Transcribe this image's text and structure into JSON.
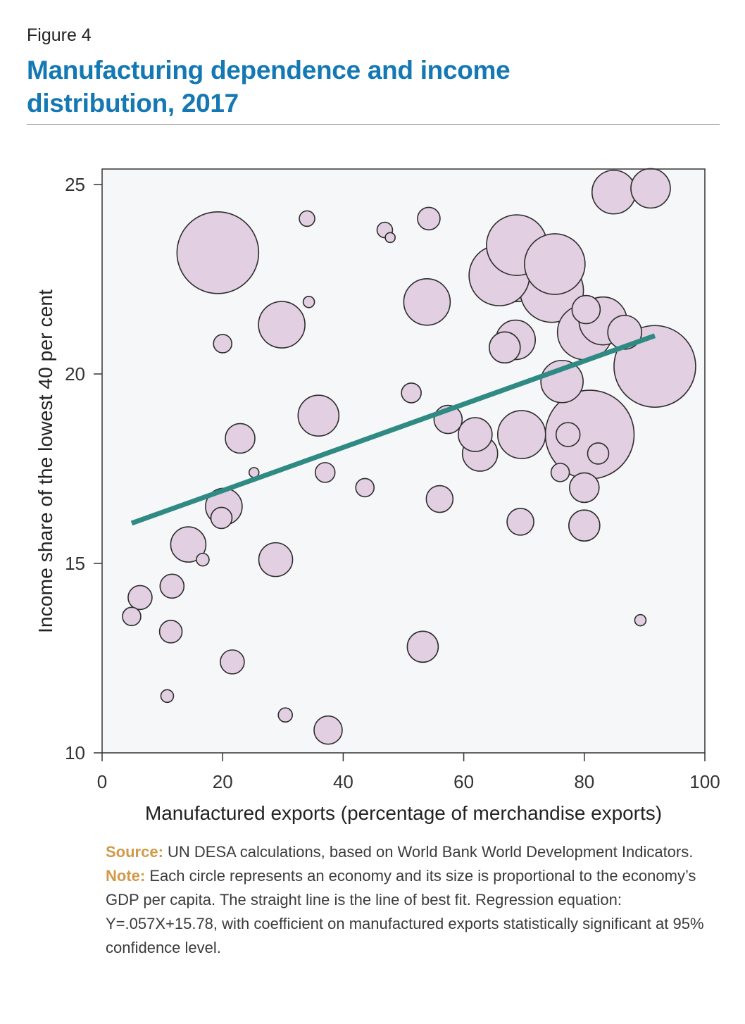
{
  "figure_label": "Figure 4",
  "title": "Manufacturing dependence and income distribution, 2017",
  "colors": {
    "title": "#1478b4",
    "bubble_fill": "#e2cfe1",
    "bubble_stroke": "#2d2d2d",
    "fit_line": "#2f8a84",
    "plot_bg": "#f6f7f8",
    "footnote_key": "#d19a4a"
  },
  "chart_data": {
    "type": "scatter",
    "xlabel": "Manufactured exports (percentage of merchandise exports)",
    "ylabel": "Income share of the lowest 40 per cent",
    "xlim": [
      0,
      100
    ],
    "ylim": [
      10,
      25.5
    ],
    "x_ticks": [
      "0",
      "20",
      "40",
      "60",
      "80",
      "100"
    ],
    "y_ticks": [
      "10",
      "15",
      "20",
      "25"
    ],
    "grid": false,
    "size_encoding": "GDP per capita (relative)",
    "points": [
      {
        "x": 19.2,
        "y": 23.2,
        "size": 58
      },
      {
        "x": 34.0,
        "y": 24.1,
        "size": 11
      },
      {
        "x": 46.9,
        "y": 23.8,
        "size": 11
      },
      {
        "x": 47.8,
        "y": 23.6,
        "size": 7
      },
      {
        "x": 54.2,
        "y": 24.1,
        "size": 16
      },
      {
        "x": 34.3,
        "y": 21.9,
        "size": 8
      },
      {
        "x": 29.8,
        "y": 21.3,
        "size": 33
      },
      {
        "x": 20.0,
        "y": 20.8,
        "size": 13
      },
      {
        "x": 53.9,
        "y": 21.9,
        "size": 33
      },
      {
        "x": 51.3,
        "y": 19.5,
        "size": 14
      },
      {
        "x": 35.9,
        "y": 18.9,
        "size": 29
      },
      {
        "x": 22.9,
        "y": 18.3,
        "size": 21
      },
      {
        "x": 25.2,
        "y": 17.4,
        "size": 7
      },
      {
        "x": 37.0,
        "y": 17.4,
        "size": 14
      },
      {
        "x": 43.6,
        "y": 17.0,
        "size": 13
      },
      {
        "x": 19.8,
        "y": 16.2,
        "size": 15
      },
      {
        "x": 20.2,
        "y": 16.5,
        "size": 26
      },
      {
        "x": 14.3,
        "y": 15.5,
        "size": 25
      },
      {
        "x": 16.7,
        "y": 15.1,
        "size": 9
      },
      {
        "x": 28.8,
        "y": 15.1,
        "size": 24
      },
      {
        "x": 6.3,
        "y": 14.1,
        "size": 17
      },
      {
        "x": 4.9,
        "y": 13.6,
        "size": 13
      },
      {
        "x": 11.6,
        "y": 14.4,
        "size": 17
      },
      {
        "x": 11.4,
        "y": 13.2,
        "size": 16
      },
      {
        "x": 21.6,
        "y": 12.4,
        "size": 17
      },
      {
        "x": 10.8,
        "y": 11.5,
        "size": 9
      },
      {
        "x": 30.4,
        "y": 11.0,
        "size": 10
      },
      {
        "x": 37.5,
        "y": 10.6,
        "size": 20
      },
      {
        "x": 53.2,
        "y": 12.8,
        "size": 22
      },
      {
        "x": 56.0,
        "y": 16.7,
        "size": 19
      },
      {
        "x": 57.4,
        "y": 18.8,
        "size": 20
      },
      {
        "x": 62.7,
        "y": 17.9,
        "size": 25
      },
      {
        "x": 61.9,
        "y": 18.4,
        "size": 24
      },
      {
        "x": 65.9,
        "y": 22.6,
        "size": 43
      },
      {
        "x": 68.8,
        "y": 23.4,
        "size": 43
      },
      {
        "x": 75.1,
        "y": 22.9,
        "size": 43
      },
      {
        "x": 74.6,
        "y": 22.2,
        "size": 45
      },
      {
        "x": 68.6,
        "y": 22.8,
        "size": 48
      },
      {
        "x": 68.6,
        "y": 20.9,
        "size": 28
      },
      {
        "x": 66.8,
        "y": 20.7,
        "size": 22
      },
      {
        "x": 69.6,
        "y": 18.4,
        "size": 34
      },
      {
        "x": 69.4,
        "y": 16.1,
        "size": 19
      },
      {
        "x": 76.3,
        "y": 19.8,
        "size": 30
      },
      {
        "x": 80.9,
        "y": 18.4,
        "size": 63
      },
      {
        "x": 77.3,
        "y": 18.4,
        "size": 17
      },
      {
        "x": 82.3,
        "y": 17.9,
        "size": 15
      },
      {
        "x": 76.0,
        "y": 17.4,
        "size": 13
      },
      {
        "x": 80.0,
        "y": 17.0,
        "size": 21
      },
      {
        "x": 80.0,
        "y": 16.0,
        "size": 22
      },
      {
        "x": 83.1,
        "y": 21.4,
        "size": 34
      },
      {
        "x": 80.1,
        "y": 21.1,
        "size": 39
      },
      {
        "x": 80.3,
        "y": 21.7,
        "size": 20
      },
      {
        "x": 86.7,
        "y": 21.1,
        "size": 24
      },
      {
        "x": 84.9,
        "y": 24.8,
        "size": 31
      },
      {
        "x": 91.0,
        "y": 24.9,
        "size": 28
      },
      {
        "x": 91.7,
        "y": 20.2,
        "size": 58
      },
      {
        "x": 89.3,
        "y": 13.5,
        "size": 8
      }
    ],
    "fit_line": {
      "x": [
        4.9,
        91.7
      ],
      "y": [
        16.06,
        21.01
      ]
    }
  },
  "footnote": {
    "source_label": "Source:",
    "source_text": " UN DESA calculations, based on World Bank World Development Indicators.",
    "note_label": "Note:",
    "note_text": " Each circle represents an economy and its size is proportional to the economy’s GDP per capita. The straight line is the line of best fit. Regression equation: Y=.057X+15.78, with coefficient on manufactured exports statistically significant at 95% confidence level."
  }
}
